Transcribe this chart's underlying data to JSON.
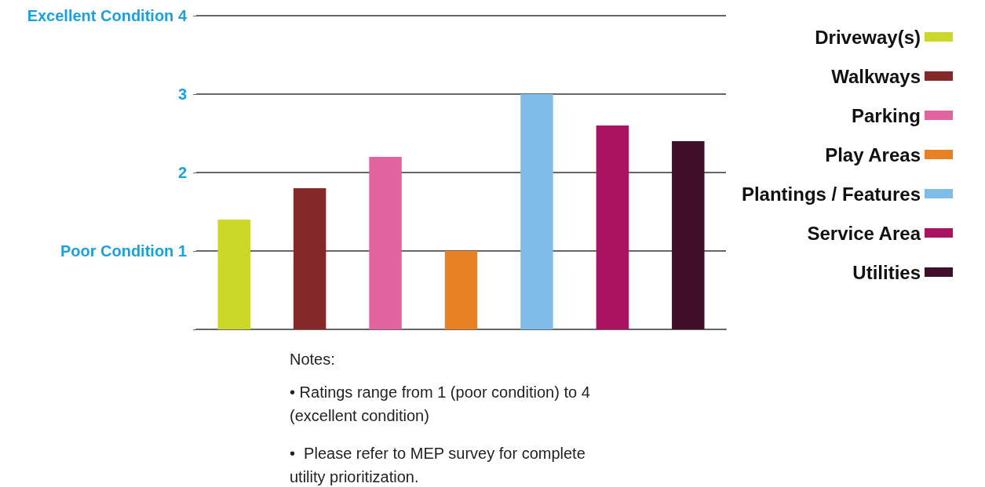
{
  "chart_data": {
    "type": "bar",
    "categories": [
      null,
      null,
      null,
      null,
      null,
      null,
      null
    ],
    "series": [
      {
        "name": "Driveway(s)",
        "color": "#cbd82a",
        "values": [
          1.4,
          null,
          null,
          null,
          null,
          null,
          null
        ]
      },
      {
        "name": "Walkways",
        "color": "#84282a",
        "values": [
          null,
          1.8,
          null,
          null,
          null,
          null,
          null
        ]
      },
      {
        "name": "Parking",
        "color": "#df64a0",
        "values": [
          null,
          null,
          2.2,
          null,
          null,
          null,
          null
        ]
      },
      {
        "name": "Play Areas",
        "color": "#e88024",
        "values": [
          null,
          null,
          null,
          1.0,
          null,
          null,
          null
        ]
      },
      {
        "name": "Plantings / Features",
        "color": "#80bce8",
        "values": [
          null,
          null,
          null,
          null,
          3.0,
          null,
          null
        ]
      },
      {
        "name": "Service Area",
        "color": "#ab1260",
        "values": [
          null,
          null,
          null,
          null,
          null,
          2.6,
          null
        ]
      },
      {
        "name": "Utilities",
        "color": "#3f0f2a",
        "values": [
          null,
          null,
          null,
          null,
          null,
          null,
          2.4
        ]
      }
    ],
    "ylim": [
      0,
      4
    ],
    "yticks": [
      {
        "value": 0,
        "label": null
      },
      {
        "value": 1,
        "label": "Poor Condition 1"
      },
      2,
      3,
      {
        "value": 4,
        "label": "Excellent Condition 4"
      }
    ],
    "grid": "y",
    "legend": "right",
    "annotations": [
      "Notes:",
      "• Ratings range from 1 (poor condition) to 4 (excellent condition)",
      "•  Please refer to MEP survey for complete utility prioritization."
    ]
  }
}
